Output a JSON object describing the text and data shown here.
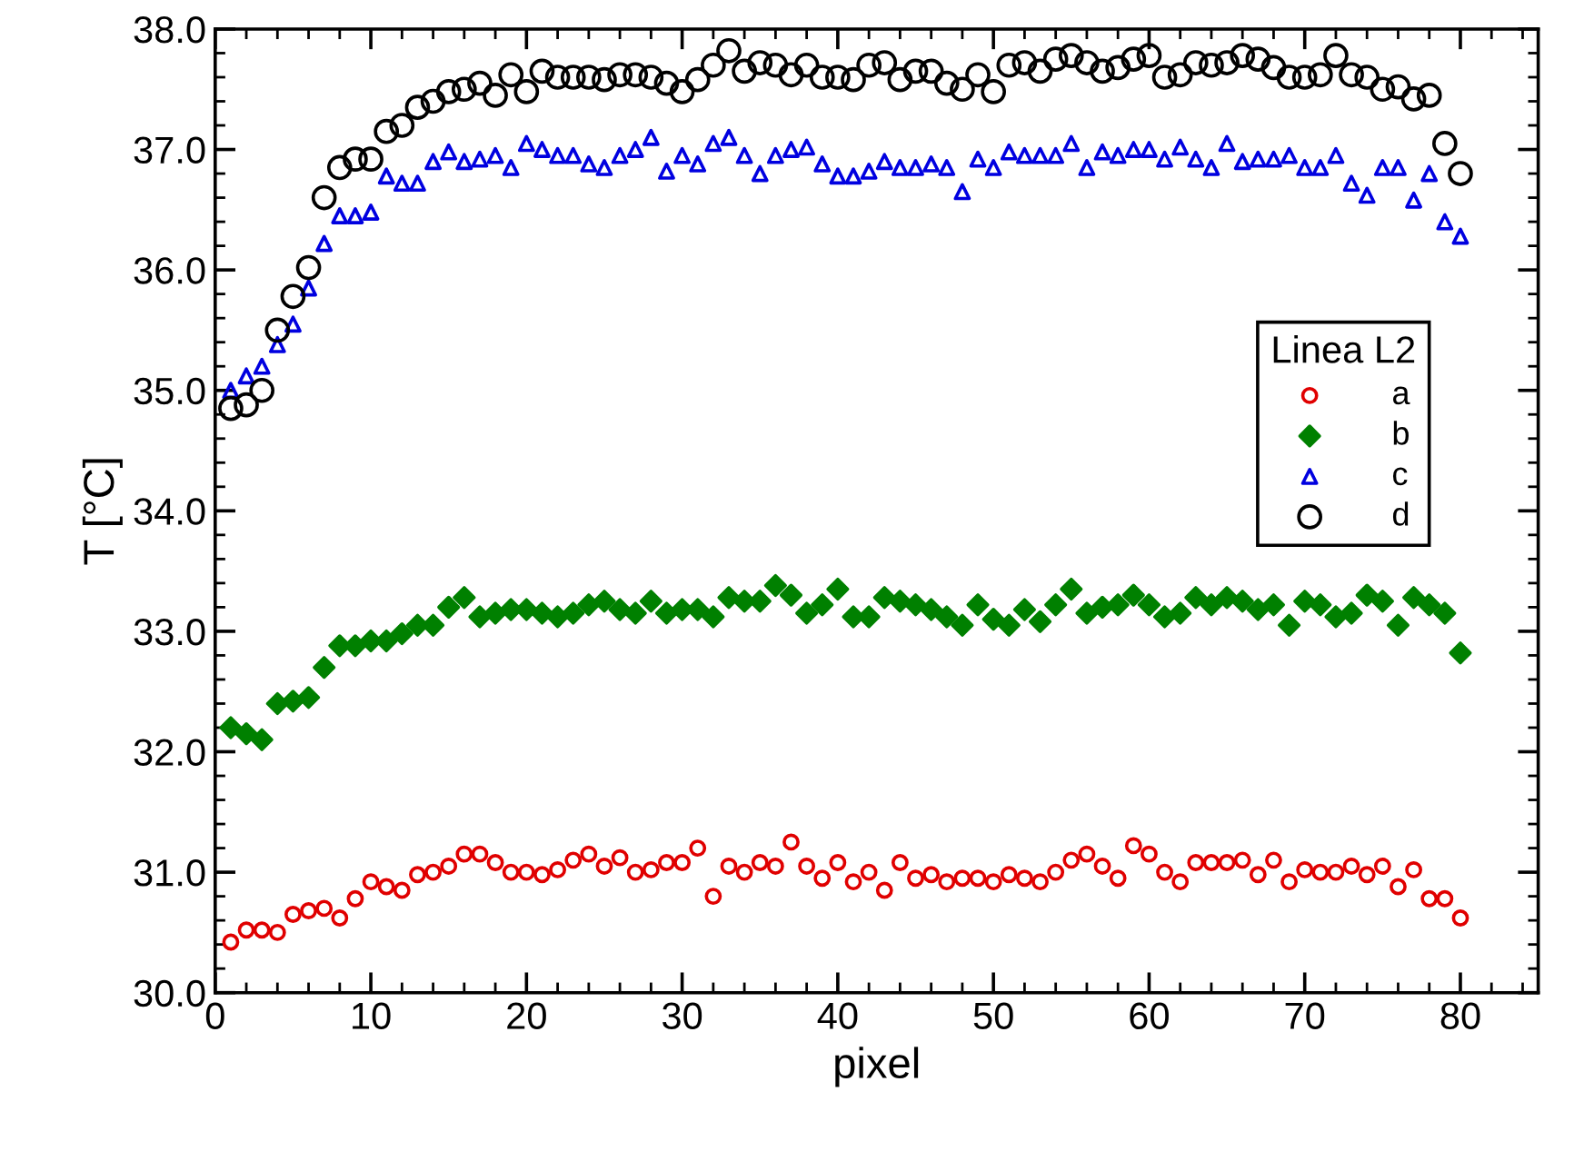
{
  "chart_data": {
    "type": "scatter",
    "xlabel": "pixel",
    "ylabel": "T [°C]",
    "legend_title": "Linea L2",
    "legend": "center right",
    "x": [
      1,
      2,
      3,
      4,
      5,
      6,
      7,
      8,
      9,
      10,
      11,
      12,
      13,
      14,
      15,
      16,
      17,
      18,
      19,
      20,
      21,
      22,
      23,
      24,
      25,
      26,
      27,
      28,
      29,
      30,
      31,
      32,
      33,
      34,
      35,
      36,
      37,
      38,
      39,
      40,
      41,
      42,
      43,
      44,
      45,
      46,
      47,
      48,
      49,
      50,
      51,
      52,
      53,
      54,
      55,
      56,
      57,
      58,
      59,
      60,
      61,
      62,
      63,
      64,
      65,
      66,
      67,
      68,
      69,
      70,
      71,
      72,
      73,
      74,
      75,
      76,
      77,
      78,
      79,
      80
    ],
    "xlim": [
      0,
      85
    ],
    "xticks": [
      0,
      10,
      20,
      30,
      40,
      50,
      60,
      70,
      80
    ],
    "ylim": [
      30,
      38
    ],
    "yticks": [
      {
        "value": 30,
        "label": "30.0"
      },
      {
        "value": 31,
        "label": "31.0"
      },
      {
        "value": 32,
        "label": "32.0"
      },
      {
        "value": 33,
        "label": "33.0"
      },
      {
        "value": 34,
        "label": "34.0"
      },
      {
        "value": 35,
        "label": "35.0"
      },
      {
        "value": 36,
        "label": "36.0"
      },
      {
        "value": 37,
        "label": "37.0"
      },
      {
        "value": 38,
        "label": "38.0"
      }
    ],
    "grid": false,
    "series": [
      {
        "name": "a",
        "color": "#e00000",
        "marker": "circle",
        "values": [
          30.42,
          30.52,
          30.52,
          30.5,
          30.65,
          30.68,
          30.7,
          30.62,
          30.78,
          30.92,
          30.88,
          30.85,
          30.98,
          31.0,
          31.05,
          31.15,
          31.15,
          31.08,
          31.0,
          31.0,
          30.98,
          31.02,
          31.1,
          31.15,
          31.05,
          31.12,
          31.0,
          31.02,
          31.08,
          31.08,
          31.2,
          30.8,
          31.05,
          31.0,
          31.08,
          31.05,
          31.25,
          31.05,
          30.95,
          31.08,
          30.92,
          31.0,
          30.85,
          31.08,
          30.95,
          30.98,
          30.92,
          30.95,
          30.95,
          30.92,
          30.98,
          30.95,
          30.92,
          31.0,
          31.1,
          31.15,
          31.05,
          30.95,
          31.22,
          31.15,
          31.0,
          30.92,
          31.08,
          31.08,
          31.08,
          31.1,
          30.98,
          31.1,
          30.92,
          31.02,
          31.0,
          31.0,
          31.05,
          30.98,
          31.05,
          30.88,
          31.02,
          30.78,
          30.78,
          30.62
        ]
      },
      {
        "name": "b",
        "color": "#008000",
        "marker": "diamond",
        "values": [
          32.2,
          32.15,
          32.1,
          32.4,
          32.42,
          32.45,
          32.7,
          32.88,
          32.88,
          32.92,
          32.92,
          32.98,
          33.05,
          33.05,
          33.2,
          33.28,
          33.12,
          33.15,
          33.18,
          33.18,
          33.15,
          33.12,
          33.15,
          33.22,
          33.25,
          33.18,
          33.15,
          33.25,
          33.15,
          33.18,
          33.18,
          33.12,
          33.28,
          33.25,
          33.25,
          33.38,
          33.3,
          33.15,
          33.22,
          33.35,
          33.12,
          33.12,
          33.28,
          33.25,
          33.22,
          33.18,
          33.12,
          33.05,
          33.22,
          33.1,
          33.05,
          33.18,
          33.08,
          33.22,
          33.35,
          33.15,
          33.2,
          33.22,
          33.3,
          33.22,
          33.12,
          33.15,
          33.28,
          33.22,
          33.28,
          33.25,
          33.18,
          33.22,
          33.05,
          33.25,
          33.22,
          33.12,
          33.15,
          33.3,
          33.25,
          33.05,
          33.28,
          33.22,
          33.15,
          32.82
        ]
      },
      {
        "name": "c",
        "color": "#0000e0",
        "marker": "triangle",
        "values": [
          35.0,
          35.12,
          35.2,
          35.38,
          35.55,
          35.85,
          36.22,
          36.45,
          36.45,
          36.48,
          36.78,
          36.72,
          36.72,
          36.9,
          36.98,
          36.9,
          36.92,
          36.95,
          36.85,
          37.05,
          37.0,
          36.95,
          36.95,
          36.88,
          36.85,
          36.95,
          37.0,
          37.1,
          36.82,
          36.95,
          36.88,
          37.05,
          37.1,
          36.95,
          36.8,
          36.95,
          37.0,
          37.02,
          36.88,
          36.78,
          36.78,
          36.82,
          36.9,
          36.85,
          36.85,
          36.88,
          36.85,
          36.65,
          36.92,
          36.85,
          36.98,
          36.95,
          36.95,
          36.95,
          37.05,
          36.85,
          36.98,
          36.95,
          37.0,
          37.0,
          36.92,
          37.02,
          36.92,
          36.85,
          37.05,
          36.9,
          36.92,
          36.92,
          36.95,
          36.85,
          36.85,
          36.95,
          36.72,
          36.62,
          36.85,
          36.85,
          36.58,
          36.8,
          36.4,
          36.28
        ]
      },
      {
        "name": "d",
        "color": "#000000",
        "marker": "circle",
        "values": [
          34.85,
          34.88,
          35.0,
          35.5,
          35.78,
          36.02,
          36.6,
          36.85,
          36.92,
          36.92,
          37.15,
          37.2,
          37.35,
          37.4,
          37.48,
          37.5,
          37.55,
          37.45,
          37.62,
          37.48,
          37.65,
          37.6,
          37.6,
          37.6,
          37.58,
          37.62,
          37.62,
          37.6,
          37.55,
          37.48,
          37.58,
          37.7,
          37.82,
          37.65,
          37.72,
          37.7,
          37.62,
          37.7,
          37.6,
          37.6,
          37.58,
          37.7,
          37.72,
          37.58,
          37.65,
          37.65,
          37.55,
          37.5,
          37.62,
          37.48,
          37.7,
          37.72,
          37.65,
          37.75,
          37.78,
          37.72,
          37.65,
          37.68,
          37.75,
          37.78,
          37.6,
          37.62,
          37.72,
          37.7,
          37.72,
          37.78,
          37.75,
          37.68,
          37.6,
          37.6,
          37.62,
          37.78,
          37.62,
          37.6,
          37.5,
          37.52,
          37.42,
          37.45,
          37.05,
          36.8
        ]
      }
    ]
  }
}
